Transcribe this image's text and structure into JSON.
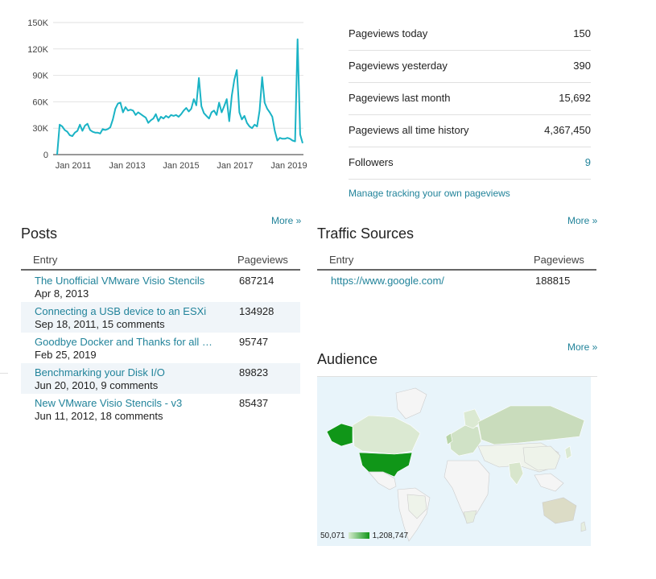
{
  "chart_data": {
    "type": "line",
    "x_ticks": [
      "Jan 2011",
      "Jan 2013",
      "Jan 2015",
      "Jan 2017",
      "Jan 2019"
    ],
    "y_ticks": [
      "150K",
      "120K",
      "90K",
      "60K",
      "30K",
      "0"
    ],
    "ylim": [
      0,
      150000
    ],
    "x_range": [
      "2010-06",
      "2019-06"
    ],
    "grid": true,
    "color": "#1ab3c5",
    "values": [
      0,
      34000,
      32000,
      28000,
      26000,
      22000,
      21000,
      25000,
      27000,
      34000,
      27000,
      33000,
      35000,
      28000,
      26000,
      25000,
      25000,
      24000,
      29000,
      28000,
      29000,
      31000,
      40000,
      52000,
      58000,
      59000,
      48000,
      54000,
      50000,
      51000,
      50000,
      45000,
      48000,
      46000,
      44000,
      42000,
      36000,
      39000,
      41000,
      46000,
      38000,
      43000,
      41000,
      44000,
      42000,
      45000,
      44000,
      45000,
      43000,
      46000,
      50000,
      53000,
      49000,
      52000,
      63000,
      56000,
      87000,
      55000,
      47000,
      44000,
      41000,
      48000,
      50000,
      45000,
      59000,
      48000,
      55000,
      63000,
      38000,
      67000,
      85000,
      96000,
      48000,
      40000,
      44000,
      36000,
      32000,
      30000,
      34000,
      32000,
      50000,
      88000,
      59000,
      52000,
      48000,
      43000,
      27000,
      16000,
      19000,
      18000,
      18000,
      19000,
      18000,
      16000,
      15000,
      131000,
      23000,
      13000
    ]
  },
  "stats": [
    {
      "label": "Pageviews today",
      "value": "150"
    },
    {
      "label": "Pageviews yesterday",
      "value": "390"
    },
    {
      "label": "Pageviews last month",
      "value": "15,692"
    },
    {
      "label": "Pageviews all time history",
      "value": "4,367,450"
    },
    {
      "label": "Followers",
      "value": "9"
    }
  ],
  "manage_link": "Manage tracking your own pageviews",
  "more_label": "More »",
  "posts": {
    "title": "Posts",
    "col_entry": "Entry",
    "col_pageviews": "Pageviews",
    "rows": [
      {
        "title": "The Unofficial VMware Visio Stencils",
        "sub": "Apr 8, 2013",
        "pageviews": "687214"
      },
      {
        "title": "Connecting a USB device to an ESXi",
        "sub": "Sep 18, 2011, 15 comments",
        "pageviews": "134928"
      },
      {
        "title": "Goodbye Docker and Thanks for all the",
        "sub": "Feb 25, 2019",
        "pageviews": "95747"
      },
      {
        "title": "Benchmarking your Disk I/O",
        "sub": "Jun 20, 2010, 9 comments",
        "pageviews": "89823"
      },
      {
        "title": "New VMware Visio Stencils - v3",
        "sub": "Jun 11, 2012, 18 comments",
        "pageviews": "85437"
      }
    ]
  },
  "traffic": {
    "title": "Traffic Sources",
    "col_entry": "Entry",
    "col_pageviews": "Pageviews",
    "rows": [
      {
        "entry": "https://www.google.com/",
        "pageviews": "188815"
      }
    ]
  },
  "audience": {
    "title": "Audience",
    "legend_min": "50,071",
    "legend_max": "1,208,747",
    "colors": {
      "ocean": "#e8f4fa",
      "land": "#f5f5f5",
      "low": "#d8ecd0",
      "mid": "#b8d4a8",
      "high": "#109618"
    }
  }
}
